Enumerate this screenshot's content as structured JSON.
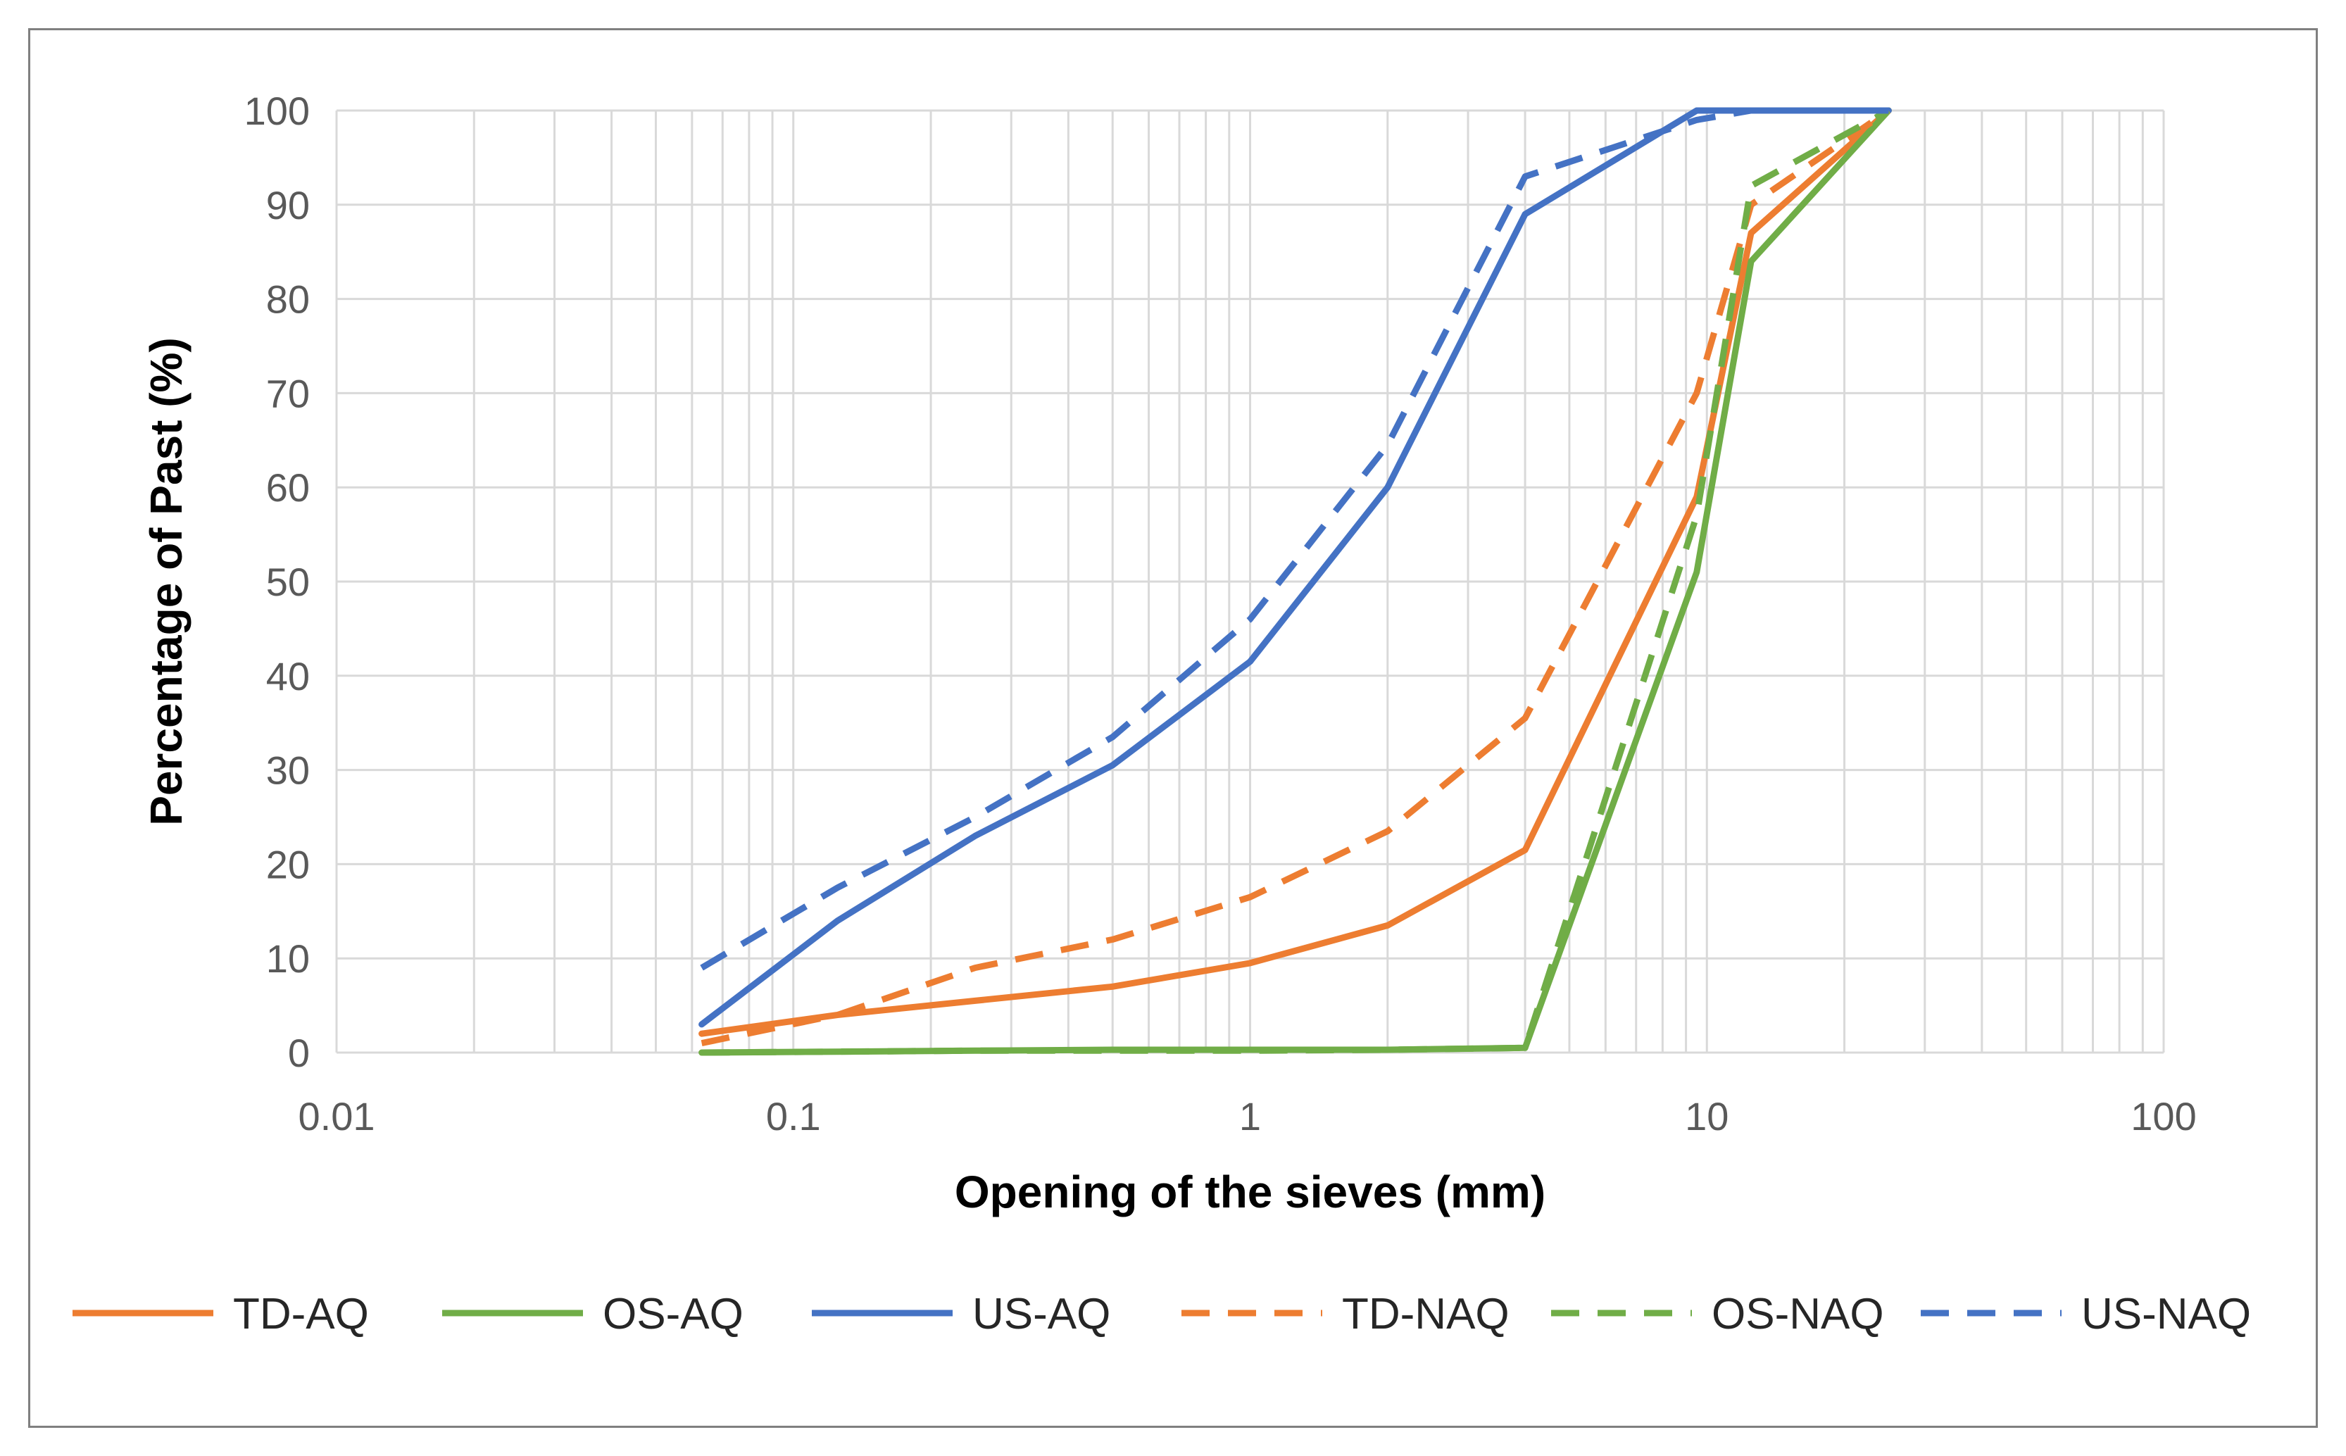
{
  "chart_data": {
    "type": "line",
    "title": "",
    "xlabel": "Opening of the sieves (mm)",
    "ylabel": "Percentage of Past (%)",
    "xscale": "log",
    "xlim": [
      0.01,
      100
    ],
    "ylim": [
      0,
      100
    ],
    "grid": true,
    "legend_position": "bottom",
    "x_ticks": [
      {
        "value": 0.01,
        "label": "0.01"
      },
      {
        "value": 0.1,
        "label": "0.1"
      },
      {
        "value": 1,
        "label": "1"
      },
      {
        "value": 10,
        "label": "10"
      },
      {
        "value": 100,
        "label": "100"
      }
    ],
    "y_ticks": [
      {
        "value": 0,
        "label": "0"
      },
      {
        "value": 10,
        "label": "10"
      },
      {
        "value": 20,
        "label": "20"
      },
      {
        "value": 30,
        "label": "30"
      },
      {
        "value": 40,
        "label": "40"
      },
      {
        "value": 50,
        "label": "50"
      },
      {
        "value": 60,
        "label": "60"
      },
      {
        "value": 70,
        "label": "70"
      },
      {
        "value": 80,
        "label": "80"
      },
      {
        "value": 90,
        "label": "90"
      },
      {
        "value": 100,
        "label": "100"
      }
    ],
    "series": [
      {
        "name": "TD-AQ",
        "color": "#ed7d31",
        "dash": false,
        "x": [
          0.063,
          0.125,
          0.25,
          0.5,
          1,
          2,
          4,
          9.5,
          12.5,
          25
        ],
        "y": [
          2,
          4,
          5.5,
          7,
          9.5,
          13.5,
          21.5,
          59,
          87,
          100
        ]
      },
      {
        "name": "OS-AQ",
        "color": "#70ad47",
        "dash": false,
        "x": [
          0.063,
          0.125,
          0.25,
          0.5,
          1,
          2,
          4,
          9.5,
          12.5,
          25
        ],
        "y": [
          0,
          0.1,
          0.2,
          0.3,
          0.3,
          0.3,
          0.5,
          51,
          84,
          100
        ]
      },
      {
        "name": "US-AQ",
        "color": "#4472c4",
        "dash": false,
        "x": [
          0.063,
          0.125,
          0.25,
          0.5,
          1,
          2,
          4,
          9.5,
          12.5,
          25
        ],
        "y": [
          3,
          14,
          23,
          30.5,
          41.5,
          60,
          89,
          100,
          100,
          100
        ]
      },
      {
        "name": "TD-NAQ",
        "color": "#ed7d31",
        "dash": true,
        "x": [
          0.063,
          0.125,
          0.25,
          0.5,
          1,
          2,
          4,
          9.5,
          12.5,
          25
        ],
        "y": [
          1,
          4,
          9,
          12,
          16.5,
          23.5,
          35.5,
          70,
          90,
          100
        ]
      },
      {
        "name": "OS-NAQ",
        "color": "#70ad47",
        "dash": true,
        "x": [
          0.063,
          0.125,
          0.25,
          0.5,
          1,
          2,
          4,
          9.5,
          12.5,
          25
        ],
        "y": [
          0,
          0.1,
          0.2,
          0.2,
          0.2,
          0.3,
          0.5,
          57,
          92,
          100
        ]
      },
      {
        "name": "US-NAQ",
        "color": "#4472c4",
        "dash": true,
        "x": [
          0.063,
          0.125,
          0.25,
          0.5,
          1,
          2,
          4,
          9.5,
          12.5,
          25
        ],
        "y": [
          9,
          17.5,
          25,
          33.5,
          46,
          64.5,
          93,
          99,
          100,
          100
        ]
      }
    ]
  }
}
